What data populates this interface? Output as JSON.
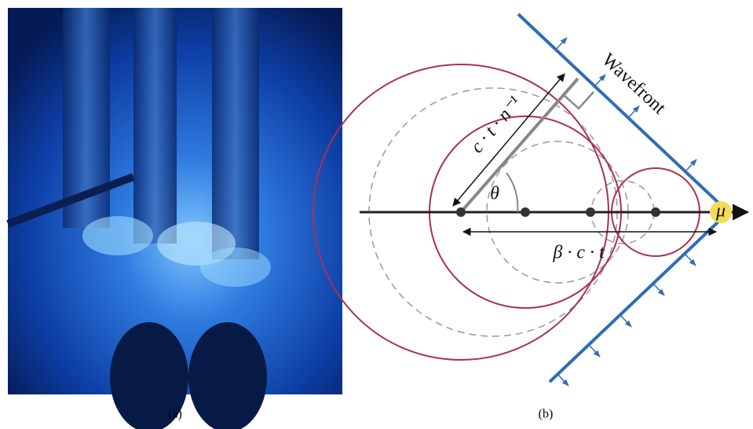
{
  "panels": [
    {
      "caption": "(a)"
    },
    {
      "caption": "(b)",
      "labels": {
        "wavefront": "Wavefront",
        "path": "c · t · n⁻¹",
        "angle": "θ",
        "travel": "β · c · t",
        "particle": "μ"
      }
    }
  ]
}
